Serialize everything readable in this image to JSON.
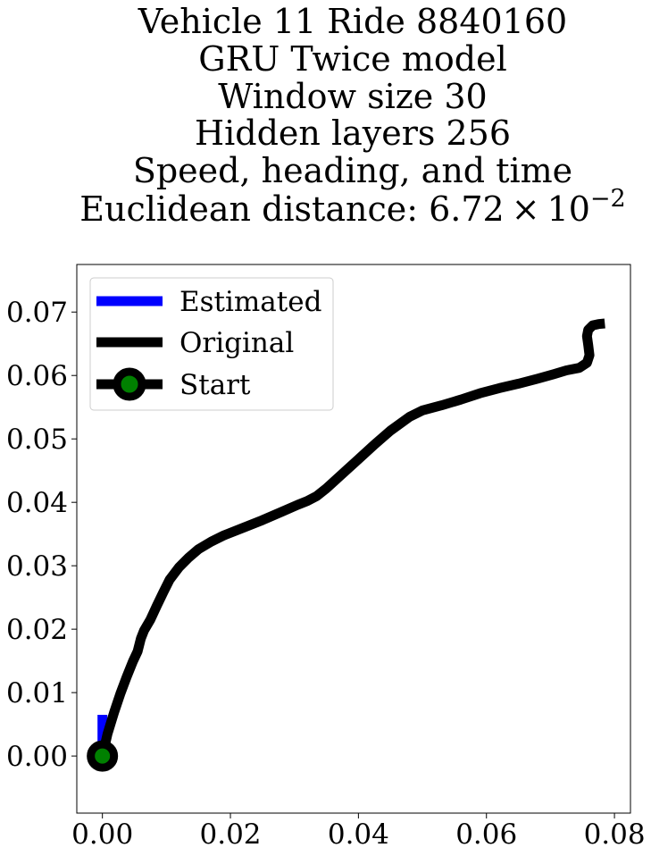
{
  "chart_data": {
    "type": "line",
    "title_lines": [
      "Vehicle 11 Ride 8840160",
      "GRU Twice model",
      "Window size 30",
      "Hidden layers 256",
      "Speed, heading, and time"
    ],
    "title_distance": {
      "prefix": "Euclidean distance: ",
      "mantissa": "6.72",
      "times": "×",
      "base": "10",
      "exponent": "−2"
    },
    "xlabel": "",
    "ylabel": "",
    "xlim": [
      -0.004,
      0.0825
    ],
    "ylim": [
      -0.009,
      0.0775
    ],
    "x_ticks": [
      0.0,
      0.02,
      0.04,
      0.06,
      0.08
    ],
    "x_tick_labels": [
      "0.00",
      "0.02",
      "0.04",
      "0.06",
      "0.08"
    ],
    "y_ticks": [
      0.0,
      0.01,
      0.02,
      0.03,
      0.04,
      0.05,
      0.06,
      0.07
    ],
    "y_tick_labels": [
      "0.00",
      "0.01",
      "0.02",
      "0.03",
      "0.04",
      "0.05",
      "0.06",
      "0.07"
    ],
    "grid": false,
    "legend_position": "top-left",
    "series": [
      {
        "name": "Estimated",
        "color": "#0000ff",
        "x": [
          0.0,
          0.0,
          0.0
        ],
        "y": [
          0.0,
          0.003,
          0.0065
        ]
      },
      {
        "name": "Original",
        "color": "#000000",
        "x": [
          0.0,
          0.0008,
          0.0018,
          0.0028,
          0.0038,
          0.0048,
          0.0055,
          0.006,
          0.0065,
          0.0075,
          0.0085,
          0.0095,
          0.0105,
          0.012,
          0.0135,
          0.015,
          0.017,
          0.019,
          0.022,
          0.025,
          0.028,
          0.0305,
          0.032,
          0.0335,
          0.035,
          0.0375,
          0.04,
          0.0425,
          0.045,
          0.048,
          0.05,
          0.053,
          0.056,
          0.059,
          0.062,
          0.065,
          0.068,
          0.0705,
          0.0725,
          0.0745,
          0.0757,
          0.0761,
          0.0759,
          0.0757,
          0.0759,
          0.0766,
          0.0775,
          0.0785
        ],
        "y": [
          0.0,
          0.0035,
          0.0068,
          0.0098,
          0.0125,
          0.015,
          0.0165,
          0.0185,
          0.0198,
          0.0215,
          0.0237,
          0.0258,
          0.0278,
          0.0298,
          0.0313,
          0.0326,
          0.0338,
          0.0348,
          0.036,
          0.0372,
          0.0385,
          0.0396,
          0.0402,
          0.041,
          0.0422,
          0.0445,
          0.0468,
          0.0491,
          0.0513,
          0.0535,
          0.0545,
          0.0553,
          0.0562,
          0.0572,
          0.058,
          0.0587,
          0.0595,
          0.0602,
          0.0608,
          0.0612,
          0.062,
          0.0632,
          0.0648,
          0.0662,
          0.0672,
          0.0679,
          0.0681,
          0.0682
        ]
      },
      {
        "name": "Start",
        "color": "#000000",
        "marker_face": "#008000",
        "x": [
          0.0
        ],
        "y": [
          0.0
        ]
      }
    ],
    "legend_entries": [
      "Estimated",
      "Original",
      "Start"
    ]
  }
}
